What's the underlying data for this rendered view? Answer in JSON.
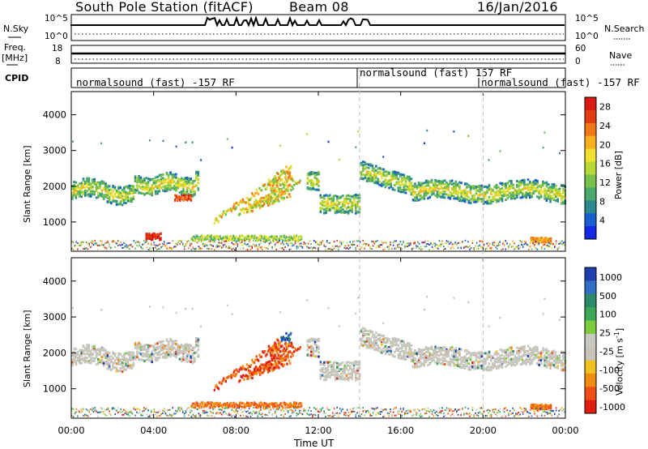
{
  "header": {
    "station": "South Pole Station (fitACF)",
    "beam": "Beam 08",
    "date": "16/Jan/2016"
  },
  "side_labels": {
    "nsky": "N.Sky",
    "nsearch": "N.Search",
    "freq": "Freq.",
    "freq_unit": "[MHz]",
    "nave": "Nave",
    "cpid": "CPID"
  },
  "noise_axes": {
    "left_top": "10^5",
    "left_bottom": "10^0",
    "right_top": "10^5",
    "right_bottom": "10^0"
  },
  "freq_axes": {
    "left_top": "18",
    "left_bottom": "8",
    "right_top": "60",
    "right_bottom": "0"
  },
  "cpid_modes": [
    {
      "label": "normalsound (fast) -157 RF",
      "start_hour": 0
    },
    {
      "label": "normalsound (fast) 157 RF",
      "start_hour": 14
    },
    {
      "label": "normalsound (fast) -157 RF",
      "start_hour": 20
    }
  ],
  "colors": {
    "power": [
      "#1428e6",
      "#1a5fd0",
      "#2b8a8f",
      "#4aa86c",
      "#78c04a",
      "#b8d838",
      "#f0e030",
      "#f8b020",
      "#f07818",
      "#e03c10",
      "#d81a10"
    ],
    "velocity": [
      "#1f3fb0",
      "#2f6ec0",
      "#2a8a6a",
      "#3aa858",
      "#7ccc3c",
      "#c8c8c0",
      "#c6c3b8",
      "#f0c020",
      "#f08c10",
      "#f05018",
      "#e01e10"
    ]
  },
  "chart_data": [
    {
      "type": "heatmap",
      "name": "power",
      "ylabel": "Slant Range [km]",
      "xlabel": "",
      "x_ticks": [
        "00:00",
        "04:00",
        "08:00",
        "12:00",
        "16:00",
        "20:00",
        "00:00"
      ],
      "x_range_hours": [
        0,
        24
      ],
      "y_ticks": [
        1000,
        2000,
        3000,
        4000
      ],
      "y_range_km": [
        180,
        4650
      ],
      "colorbar": {
        "label": "Power [dB]",
        "ticks": [
          4,
          8,
          12,
          16,
          20,
          24,
          28
        ],
        "range": [
          0,
          30
        ]
      },
      "features": [
        {
          "desc": "main band",
          "t_start": 0.0,
          "t_end": 24.0,
          "range_km": 1850,
          "value_db": 14
        },
        {
          "desc": "strong patch",
          "t_start": 3.6,
          "t_end": 4.2,
          "range_km": 550,
          "value_db": 28
        },
        {
          "desc": "rising streaks",
          "t_start": 6.5,
          "t_end": 11.0,
          "range_km": 1600,
          "value_db": 20
        },
        {
          "desc": "enhanced echo",
          "t_start": 5.0,
          "t_end": 5.8,
          "range_km": 1650,
          "value_db": 26
        }
      ]
    },
    {
      "type": "heatmap",
      "name": "velocity",
      "ylabel": "Slant Range [km]",
      "xlabel": "Time UT",
      "x_ticks": [
        "00:00",
        "04:00",
        "08:00",
        "12:00",
        "16:00",
        "20:00",
        "00:00"
      ],
      "x_range_hours": [
        0,
        24
      ],
      "y_ticks": [
        1000,
        2000,
        3000,
        4000
      ],
      "y_range_km": [
        180,
        4650
      ],
      "colorbar": {
        "label": "Velocity [m s^-1]",
        "ticks": [
          1000,
          500,
          100,
          25,
          -25,
          -100,
          -500,
          -1000
        ]
      },
      "features": [
        {
          "desc": "ground scatter band",
          "t_start": 0.0,
          "t_end": 24.0,
          "range_km": 1850,
          "value_ms": 0
        },
        {
          "desc": "receding streaks",
          "t_start": 6.5,
          "t_end": 11.0,
          "range_km": 1300,
          "value_ms": -400
        },
        {
          "desc": "approaching patch",
          "t_start": 10.3,
          "t_end": 10.8,
          "range_km": 2150,
          "value_ms": 800
        },
        {
          "desc": "low range flow",
          "t_start": 22.3,
          "t_end": 23.3,
          "range_km": 480,
          "value_ms": -400
        }
      ]
    }
  ],
  "time_label": "Time UT"
}
